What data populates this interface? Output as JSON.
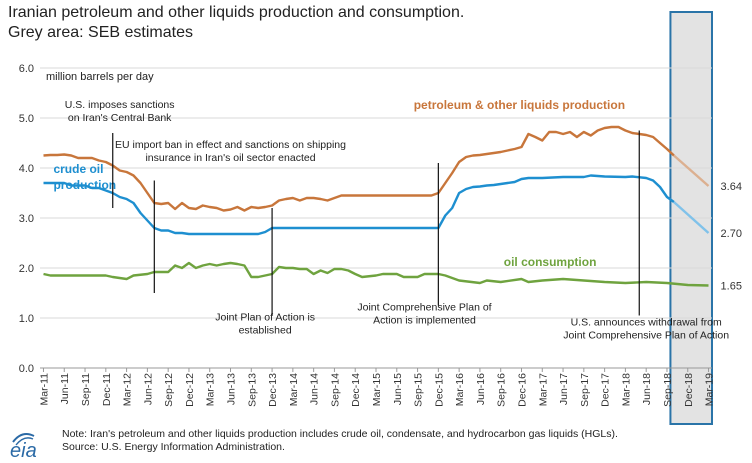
{
  "title_line1": "Iranian petroleum and other liquids production and consumption.",
  "title_line2": "Grey area: SEB estimates",
  "logo_text": "eia",
  "note_line1": "Note: Iran's petroleum and other liquids production includes crude oil, condensate, and hydrocarbon gas liquids (HGLs).",
  "note_line2": "Source: U.S. Energy Information Administration.",
  "colors": {
    "petroleum": "#c8763b",
    "crude": "#1e8fd0",
    "consumption": "#6fa33f",
    "petroleum_est": "#dcb090",
    "crude_est": "#80c2ea",
    "shade": "#e3e3e3",
    "box": "#2a74a8",
    "grid": "#d9d9d9",
    "logo": "#2b6aa6"
  },
  "chart_data": {
    "type": "line",
    "ylabel": "million barrels per day",
    "ylim": [
      0,
      6
    ],
    "yticks": [
      "0.0",
      "1.0",
      "2.0",
      "3.0",
      "4.0",
      "5.0",
      "6.0"
    ],
    "x_start": "Mar-11",
    "x_end": "Mar-19",
    "x_tick_labels": [
      "Mar-11",
      "Jun-11",
      "Sep-11",
      "Dec-11",
      "Mar-12",
      "Jun-12",
      "Sep-12",
      "Dec-12",
      "Mar-13",
      "Jun-13",
      "Sep-13",
      "Dec-13",
      "Mar-14",
      "Jun-14",
      "Sep-14",
      "Dec-14",
      "Mar-15",
      "Jun-15",
      "Sep-15",
      "Dec-15",
      "Mar-16",
      "Jun-16",
      "Sep-16",
      "Dec-16",
      "Mar-17",
      "Jun-17",
      "Sep-17",
      "Dec-17",
      "Mar-18",
      "Jun-18",
      "Sep-18",
      "Dec-18",
      "Mar-19"
    ],
    "estimate_start": "Oct-18",
    "series": [
      {
        "name": "petroleum & other liquids production",
        "color_key": "petroleum",
        "estimate_color_key": "petroleum_est",
        "points": [
          [
            "Mar-11",
            4.25
          ],
          [
            "Apr-11",
            4.26
          ],
          [
            "May-11",
            4.26
          ],
          [
            "Jun-11",
            4.27
          ],
          [
            "Jul-11",
            4.25
          ],
          [
            "Aug-11",
            4.2
          ],
          [
            "Sep-11",
            4.2
          ],
          [
            "Oct-11",
            4.2
          ],
          [
            "Nov-11",
            4.15
          ],
          [
            "Dec-11",
            4.12
          ],
          [
            "Jan-12",
            4.05
          ],
          [
            "Feb-12",
            3.95
          ],
          [
            "Mar-12",
            3.92
          ],
          [
            "Apr-12",
            3.85
          ],
          [
            "May-12",
            3.7
          ],
          [
            "Jun-12",
            3.5
          ],
          [
            "Jul-12",
            3.3
          ],
          [
            "Aug-12",
            3.28
          ],
          [
            "Sep-12",
            3.3
          ],
          [
            "Oct-12",
            3.18
          ],
          [
            "Nov-12",
            3.3
          ],
          [
            "Dec-12",
            3.2
          ],
          [
            "Jan-13",
            3.18
          ],
          [
            "Feb-13",
            3.25
          ],
          [
            "Mar-13",
            3.22
          ],
          [
            "Apr-13",
            3.2
          ],
          [
            "May-13",
            3.15
          ],
          [
            "Jun-13",
            3.17
          ],
          [
            "Jul-13",
            3.22
          ],
          [
            "Aug-13",
            3.15
          ],
          [
            "Sep-13",
            3.22
          ],
          [
            "Oct-13",
            3.2
          ],
          [
            "Nov-13",
            3.22
          ],
          [
            "Dec-13",
            3.25
          ],
          [
            "Jan-14",
            3.35
          ],
          [
            "Feb-14",
            3.38
          ],
          [
            "Mar-14",
            3.4
          ],
          [
            "Apr-14",
            3.35
          ],
          [
            "May-14",
            3.4
          ],
          [
            "Jun-14",
            3.4
          ],
          [
            "Jul-14",
            3.38
          ],
          [
            "Aug-14",
            3.35
          ],
          [
            "Sep-14",
            3.4
          ],
          [
            "Oct-14",
            3.45
          ],
          [
            "Nov-14",
            3.45
          ],
          [
            "Dec-14",
            3.45
          ],
          [
            "Mar-15",
            3.45
          ],
          [
            "Jun-15",
            3.45
          ],
          [
            "Sep-15",
            3.45
          ],
          [
            "Nov-15",
            3.45
          ],
          [
            "Dec-15",
            3.5
          ],
          [
            "Jan-16",
            3.7
          ],
          [
            "Feb-16",
            3.9
          ],
          [
            "Mar-16",
            4.12
          ],
          [
            "Apr-16",
            4.22
          ],
          [
            "May-16",
            4.25
          ],
          [
            "Jun-16",
            4.26
          ],
          [
            "Jul-16",
            4.28
          ],
          [
            "Aug-16",
            4.3
          ],
          [
            "Sep-16",
            4.32
          ],
          [
            "Oct-16",
            4.35
          ],
          [
            "Nov-16",
            4.38
          ],
          [
            "Dec-16",
            4.42
          ],
          [
            "Jan-17",
            4.68
          ],
          [
            "Feb-17",
            4.62
          ],
          [
            "Mar-17",
            4.55
          ],
          [
            "Apr-17",
            4.72
          ],
          [
            "May-17",
            4.72
          ],
          [
            "Jun-17",
            4.68
          ],
          [
            "Jul-17",
            4.72
          ],
          [
            "Aug-17",
            4.62
          ],
          [
            "Sep-17",
            4.72
          ],
          [
            "Oct-17",
            4.65
          ],
          [
            "Nov-17",
            4.75
          ],
          [
            "Dec-17",
            4.8
          ],
          [
            "Jan-18",
            4.82
          ],
          [
            "Feb-18",
            4.82
          ],
          [
            "Mar-18",
            4.75
          ],
          [
            "Apr-18",
            4.7
          ],
          [
            "May-18",
            4.68
          ],
          [
            "Jun-18",
            4.66
          ],
          [
            "Jul-18",
            4.62
          ],
          [
            "Aug-18",
            4.5
          ],
          [
            "Sep-18",
            4.38
          ],
          [
            "Oct-18",
            4.25
          ],
          [
            "Mar-19",
            3.64
          ]
        ],
        "end_label": "3.64"
      },
      {
        "name": "crude oil production",
        "color_key": "crude",
        "estimate_color_key": "crude_est",
        "points": [
          [
            "Mar-11",
            3.7
          ],
          [
            "Jun-11",
            3.7
          ],
          [
            "Jul-11",
            3.65
          ],
          [
            "Sep-11",
            3.65
          ],
          [
            "Oct-11",
            3.6
          ],
          [
            "Nov-11",
            3.6
          ],
          [
            "Dec-11",
            3.55
          ],
          [
            "Jan-12",
            3.5
          ],
          [
            "Feb-12",
            3.42
          ],
          [
            "Mar-12",
            3.38
          ],
          [
            "Apr-12",
            3.3
          ],
          [
            "May-12",
            3.1
          ],
          [
            "Jun-12",
            2.95
          ],
          [
            "Jul-12",
            2.8
          ],
          [
            "Aug-12",
            2.75
          ],
          [
            "Sep-12",
            2.75
          ],
          [
            "Oct-12",
            2.7
          ],
          [
            "Nov-12",
            2.7
          ],
          [
            "Dec-12",
            2.68
          ],
          [
            "Mar-13",
            2.68
          ],
          [
            "Jun-13",
            2.68
          ],
          [
            "Sep-13",
            2.68
          ],
          [
            "Oct-13",
            2.68
          ],
          [
            "Nov-13",
            2.72
          ],
          [
            "Dec-13",
            2.8
          ],
          [
            "Mar-14",
            2.8
          ],
          [
            "Jun-14",
            2.8
          ],
          [
            "Sep-14",
            2.8
          ],
          [
            "Dec-14",
            2.8
          ],
          [
            "Mar-15",
            2.8
          ],
          [
            "Jun-15",
            2.8
          ],
          [
            "Sep-15",
            2.8
          ],
          [
            "Dec-15",
            2.8
          ],
          [
            "Jan-16",
            3.05
          ],
          [
            "Feb-16",
            3.2
          ],
          [
            "Mar-16",
            3.5
          ],
          [
            "Apr-16",
            3.58
          ],
          [
            "May-16",
            3.62
          ],
          [
            "Jun-16",
            3.63
          ],
          [
            "Jul-16",
            3.65
          ],
          [
            "Aug-16",
            3.66
          ],
          [
            "Sep-16",
            3.68
          ],
          [
            "Oct-16",
            3.7
          ],
          [
            "Nov-16",
            3.72
          ],
          [
            "Dec-16",
            3.78
          ],
          [
            "Jan-17",
            3.8
          ],
          [
            "Mar-17",
            3.8
          ],
          [
            "Jun-17",
            3.82
          ],
          [
            "Sep-17",
            3.82
          ],
          [
            "Oct-17",
            3.85
          ],
          [
            "Dec-17",
            3.83
          ],
          [
            "Mar-18",
            3.82
          ],
          [
            "Apr-18",
            3.83
          ],
          [
            "Jun-18",
            3.8
          ],
          [
            "Jul-18",
            3.75
          ],
          [
            "Aug-18",
            3.62
          ],
          [
            "Sep-18",
            3.42
          ],
          [
            "Oct-18",
            3.32
          ],
          [
            "Mar-19",
            2.7
          ]
        ],
        "end_label": "2.70"
      },
      {
        "name": "oil consumption",
        "color_key": "consumption",
        "points": [
          [
            "Mar-11",
            1.88
          ],
          [
            "Apr-11",
            1.85
          ],
          [
            "Jun-11",
            1.85
          ],
          [
            "Sep-11",
            1.85
          ],
          [
            "Dec-11",
            1.85
          ],
          [
            "Jan-12",
            1.82
          ],
          [
            "Mar-12",
            1.78
          ],
          [
            "Apr-12",
            1.85
          ],
          [
            "Jun-12",
            1.88
          ],
          [
            "Jul-12",
            1.92
          ],
          [
            "Sep-12",
            1.92
          ],
          [
            "Oct-12",
            2.05
          ],
          [
            "Nov-12",
            2.0
          ],
          [
            "Dec-12",
            2.1
          ],
          [
            "Jan-13",
            2.0
          ],
          [
            "Feb-13",
            2.05
          ],
          [
            "Mar-13",
            2.08
          ],
          [
            "Apr-13",
            2.05
          ],
          [
            "May-13",
            2.08
          ],
          [
            "Jun-13",
            2.1
          ],
          [
            "Jul-13",
            2.08
          ],
          [
            "Aug-13",
            2.05
          ],
          [
            "Sep-13",
            1.82
          ],
          [
            "Oct-13",
            1.82
          ],
          [
            "Nov-13",
            1.85
          ],
          [
            "Dec-13",
            1.88
          ],
          [
            "Jan-14",
            2.02
          ],
          [
            "Feb-14",
            2.0
          ],
          [
            "Mar-14",
            2.0
          ],
          [
            "Apr-14",
            1.98
          ],
          [
            "May-14",
            1.98
          ],
          [
            "Jun-14",
            1.88
          ],
          [
            "Jul-14",
            1.95
          ],
          [
            "Aug-14",
            1.9
          ],
          [
            "Sep-14",
            1.98
          ],
          [
            "Oct-14",
            1.98
          ],
          [
            "Nov-14",
            1.95
          ],
          [
            "Dec-14",
            1.88
          ],
          [
            "Jan-15",
            1.82
          ],
          [
            "Mar-15",
            1.85
          ],
          [
            "Apr-15",
            1.88
          ],
          [
            "Jun-15",
            1.88
          ],
          [
            "Jul-15",
            1.82
          ],
          [
            "Sep-15",
            1.82
          ],
          [
            "Oct-15",
            1.88
          ],
          [
            "Dec-15",
            1.88
          ],
          [
            "Jan-16",
            1.85
          ],
          [
            "Mar-16",
            1.75
          ],
          [
            "Jun-16",
            1.7
          ],
          [
            "Jul-16",
            1.75
          ],
          [
            "Sep-16",
            1.72
          ],
          [
            "Dec-16",
            1.78
          ],
          [
            "Jan-17",
            1.72
          ],
          [
            "Mar-17",
            1.75
          ],
          [
            "Jun-17",
            1.78
          ],
          [
            "Sep-17",
            1.75
          ],
          [
            "Dec-17",
            1.72
          ],
          [
            "Mar-18",
            1.7
          ],
          [
            "Jun-18",
            1.72
          ],
          [
            "Sep-18",
            1.7
          ],
          [
            "Dec-18",
            1.66
          ],
          [
            "Mar-19",
            1.65
          ]
        ],
        "end_label": "1.65"
      }
    ],
    "series_labels": [
      {
        "lines": [
          "petroleum & other liquids production"
        ],
        "color_key": "petroleum",
        "at": [
          "Jul-15",
          5.18
        ]
      },
      {
        "lines": [
          "crude oil",
          "production"
        ],
        "color_key": "crude",
        "at": [
          "Mar-11",
          3.9
        ]
      },
      {
        "lines": [
          "oil consumption"
        ],
        "color_key": "consumption",
        "at": [
          "Aug-16",
          2.04
        ]
      }
    ],
    "events": [
      {
        "at": "Jan-12",
        "y_top": 4.7,
        "y_bottom": 3.2,
        "lines": [
          "U.S. imposes sanctions",
          "on Iran's Central Bank"
        ],
        "text_at": [
          "Feb-12",
          5.2
        ],
        "anchor": "middle"
      },
      {
        "at": "Jul-12",
        "y_top": 3.75,
        "y_bottom": 1.5,
        "lines": [
          "EU import ban in effect and sanctions on shipping",
          "insurance in Iran's oil sector enacted"
        ],
        "text_at": [
          "Jun-13",
          4.4
        ],
        "anchor": "middle"
      },
      {
        "at": "Dec-13",
        "y_top": 3.2,
        "y_bottom": 1.05,
        "lines": [
          "Joint Plan of Action is",
          "established"
        ],
        "text_at": [
          "Nov-13",
          0.95
        ],
        "anchor": "middle"
      },
      {
        "at": "Dec-15",
        "y_top": 4.1,
        "y_bottom": 1.25,
        "lines": [
          "Joint Comprehensive Plan of",
          "Action is implemented"
        ],
        "text_at": [
          "Oct-15",
          1.15
        ],
        "anchor": "middle"
      },
      {
        "at": "May-18",
        "y_top": 4.75,
        "y_bottom": 1.05,
        "lines": [
          "U.S. announces withdrawal from",
          "Joint Comprehensive Plan of Action"
        ],
        "text_at": [
          "Jun-18",
          0.85
        ],
        "anchor": "middle"
      }
    ]
  }
}
